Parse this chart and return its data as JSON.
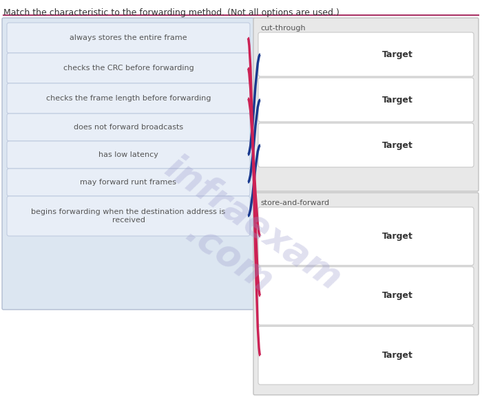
{
  "title": "Match the characteristic to the forwarding method. (Not all options are used.)",
  "title_color": "#333333",
  "title_fontsize": 9,
  "bg_color": "#ffffff",
  "left_panel_bg": "#dce6f1",
  "left_items": [
    "always stores the entire frame",
    "checks the CRC before forwarding",
    "checks the frame length before forwarding",
    "does not forward broadcasts",
    "has low latency",
    "may forward runt frames",
    "begins forwarding when the destination address is\nreceived"
  ],
  "left_item_bg": "#e8eef7",
  "left_item_border": "#c0cce0",
  "right_section_cut_label": "cut-through",
  "right_section_store_label": "store-and-forward",
  "right_section_cut_bg": "#e8e8e8",
  "right_section_store_bg": "#e8e8e8",
  "target_box_bg": "#ffffff",
  "target_box_border": "#c8c8c8",
  "target_label": "Target",
  "target_label_color": "#333333",
  "cut_through_targets": 3,
  "store_forward_targets": 3,
  "blue_color": "#1a3a8f",
  "pink_color": "#cc2255",
  "watermark_color": "#9999cc",
  "watermark_alpha": 0.3
}
